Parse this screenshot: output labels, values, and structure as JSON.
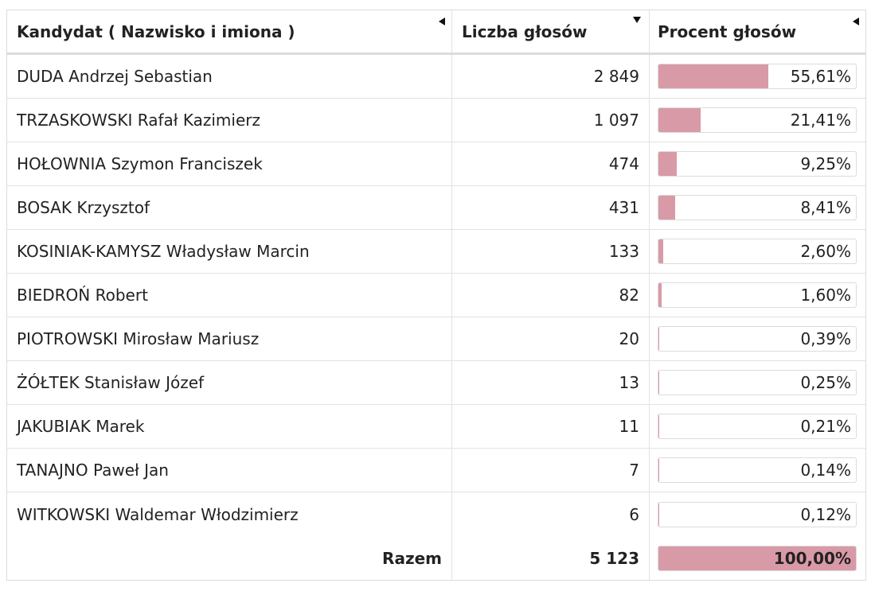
{
  "table": {
    "headers": {
      "candidate": "Kandydat ( Nazwisko i imiona )",
      "votes": "Liczba głosów",
      "percent": "Procent głosów"
    },
    "rows": [
      {
        "name": "DUDA Andrzej Sebastian",
        "votes": "2 849",
        "percent": "55,61%",
        "fraction": 0.5561
      },
      {
        "name": "TRZASKOWSKI Rafał Kazimierz",
        "votes": "1 097",
        "percent": "21,41%",
        "fraction": 0.2141
      },
      {
        "name": "HOŁOWNIA Szymon Franciszek",
        "votes": "474",
        "percent": "9,25%",
        "fraction": 0.0925
      },
      {
        "name": "BOSAK Krzysztof",
        "votes": "431",
        "percent": "8,41%",
        "fraction": 0.0841
      },
      {
        "name": "KOSINIAK-KAMYSZ Władysław Marcin",
        "votes": "133",
        "percent": "2,60%",
        "fraction": 0.026
      },
      {
        "name": "BIEDROŃ Robert",
        "votes": "82",
        "percent": "1,60%",
        "fraction": 0.016
      },
      {
        "name": "PIOTROWSKI Mirosław Mariusz",
        "votes": "20",
        "percent": "0,39%",
        "fraction": 0.0039
      },
      {
        "name": "ŻÓŁTEK Stanisław Józef",
        "votes": "13",
        "percent": "0,25%",
        "fraction": 0.0025
      },
      {
        "name": "JAKUBIAK Marek",
        "votes": "11",
        "percent": "0,21%",
        "fraction": 0.0021
      },
      {
        "name": "TANAJNO Paweł Jan",
        "votes": "7",
        "percent": "0,14%",
        "fraction": 0.0014
      },
      {
        "name": "WITKOWSKI Waldemar Włodzimierz",
        "votes": "6",
        "percent": "0,12%",
        "fraction": 0.0012
      }
    ],
    "total": {
      "label": "Razem",
      "votes": "5 123",
      "percent": "100,00%",
      "fraction": 1.0
    }
  },
  "colors": {
    "bar_fill": "#d99aa7",
    "border": "#dcdcdc"
  },
  "icons": {
    "sort_candidate": "sort-left-icon",
    "sort_votes": "sort-down-icon",
    "sort_percent": "sort-left-icon"
  }
}
